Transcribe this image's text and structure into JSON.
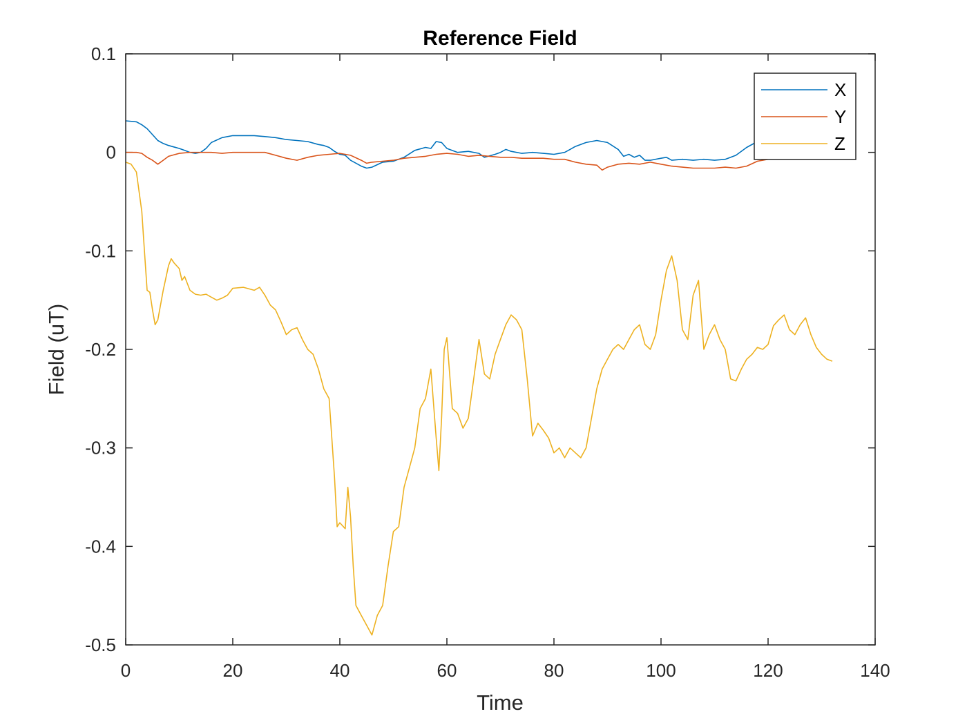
{
  "chart_data": {
    "type": "line",
    "title": "Reference Field",
    "xlabel": "Time",
    "ylabel": "Field (uT)",
    "xlim": [
      0,
      140
    ],
    "ylim": [
      -0.5,
      0.1
    ],
    "xticks": [
      0,
      20,
      40,
      60,
      80,
      100,
      120,
      140
    ],
    "yticks": [
      -0.5,
      -0.4,
      -0.3,
      -0.2,
      -0.1,
      0,
      0.1
    ],
    "xtick_labels": [
      "0",
      "20",
      "40",
      "60",
      "80",
      "100",
      "120",
      "140"
    ],
    "ytick_labels": [
      "-0.5",
      "-0.4",
      "-0.3",
      "-0.2",
      "-0.1",
      "0",
      "0.1"
    ],
    "grid": false,
    "box": true,
    "legend": {
      "position": "top-right",
      "entries": [
        "X",
        "Y",
        "Z"
      ]
    },
    "series": [
      {
        "name": "X",
        "color": "#0072BD",
        "points": [
          [
            0,
            0.032
          ],
          [
            2,
            0.031
          ],
          [
            3,
            0.028
          ],
          [
            4,
            0.024
          ],
          [
            5,
            0.018
          ],
          [
            6,
            0.012
          ],
          [
            7,
            0.009
          ],
          [
            8,
            0.007
          ],
          [
            10,
            0.004
          ],
          [
            11,
            0.002
          ],
          [
            12,
            0.0
          ],
          [
            13,
            -0.001
          ],
          [
            14,
            0.0
          ],
          [
            15,
            0.004
          ],
          [
            16,
            0.01
          ],
          [
            18,
            0.015
          ],
          [
            20,
            0.017
          ],
          [
            22,
            0.017
          ],
          [
            24,
            0.017
          ],
          [
            26,
            0.016
          ],
          [
            28,
            0.015
          ],
          [
            30,
            0.013
          ],
          [
            32,
            0.012
          ],
          [
            34,
            0.011
          ],
          [
            36,
            0.008
          ],
          [
            37,
            0.007
          ],
          [
            38,
            0.005
          ],
          [
            39,
            0.001
          ],
          [
            40,
            -0.002
          ],
          [
            41,
            -0.003
          ],
          [
            42,
            -0.008
          ],
          [
            44,
            -0.014
          ],
          [
            45,
            -0.016
          ],
          [
            46,
            -0.015
          ],
          [
            48,
            -0.01
          ],
          [
            50,
            -0.009
          ],
          [
            52,
            -0.005
          ],
          [
            54,
            0.002
          ],
          [
            56,
            0.005
          ],
          [
            57,
            0.004
          ],
          [
            58,
            0.011
          ],
          [
            59,
            0.01
          ],
          [
            60,
            0.004
          ],
          [
            62,
            0.0
          ],
          [
            64,
            0.001
          ],
          [
            66,
            -0.001
          ],
          [
            67,
            -0.005
          ],
          [
            69,
            -0.002
          ],
          [
            70,
            0.0
          ],
          [
            71,
            0.003
          ],
          [
            72,
            0.001
          ],
          [
            74,
            -0.001
          ],
          [
            76,
            0.0
          ],
          [
            78,
            -0.001
          ],
          [
            80,
            -0.002
          ],
          [
            82,
            0.0
          ],
          [
            83,
            0.003
          ],
          [
            84,
            0.006
          ],
          [
            86,
            0.01
          ],
          [
            88,
            0.012
          ],
          [
            90,
            0.01
          ],
          [
            92,
            0.003
          ],
          [
            93,
            -0.004
          ],
          [
            94,
            -0.002
          ],
          [
            95,
            -0.005
          ],
          [
            96,
            -0.003
          ],
          [
            97,
            -0.008
          ],
          [
            98,
            -0.008
          ],
          [
            100,
            -0.006
          ],
          [
            101,
            -0.005
          ],
          [
            102,
            -0.008
          ],
          [
            104,
            -0.007
          ],
          [
            106,
            -0.008
          ],
          [
            108,
            -0.007
          ],
          [
            110,
            -0.008
          ],
          [
            112,
            -0.007
          ],
          [
            114,
            -0.003
          ],
          [
            116,
            0.005
          ],
          [
            118,
            0.011
          ],
          [
            120,
            0.01
          ],
          [
            121.5,
            0.01
          ]
        ]
      },
      {
        "name": "Y",
        "color": "#D95319",
        "points": [
          [
            0,
            0.0
          ],
          [
            2,
            0.0
          ],
          [
            3,
            -0.001
          ],
          [
            4,
            -0.005
          ],
          [
            5,
            -0.008
          ],
          [
            6,
            -0.012
          ],
          [
            7,
            -0.008
          ],
          [
            8,
            -0.004
          ],
          [
            10,
            -0.001
          ],
          [
            12,
            0.0
          ],
          [
            14,
            0.0
          ],
          [
            16,
            0.0
          ],
          [
            18,
            -0.001
          ],
          [
            20,
            0.0
          ],
          [
            22,
            0.0
          ],
          [
            24,
            0.0
          ],
          [
            26,
            0.0
          ],
          [
            28,
            -0.003
          ],
          [
            30,
            -0.006
          ],
          [
            32,
            -0.008
          ],
          [
            34,
            -0.005
          ],
          [
            36,
            -0.003
          ],
          [
            38,
            -0.002
          ],
          [
            40,
            -0.001
          ],
          [
            42,
            -0.003
          ],
          [
            44,
            -0.008
          ],
          [
            45,
            -0.011
          ],
          [
            46,
            -0.01
          ],
          [
            48,
            -0.009
          ],
          [
            50,
            -0.008
          ],
          [
            52,
            -0.006
          ],
          [
            54,
            -0.005
          ],
          [
            56,
            -0.004
          ],
          [
            58,
            -0.002
          ],
          [
            60,
            -0.001
          ],
          [
            62,
            -0.002
          ],
          [
            64,
            -0.004
          ],
          [
            66,
            -0.003
          ],
          [
            68,
            -0.004
          ],
          [
            70,
            -0.005
          ],
          [
            72,
            -0.005
          ],
          [
            74,
            -0.006
          ],
          [
            76,
            -0.006
          ],
          [
            78,
            -0.006
          ],
          [
            80,
            -0.007
          ],
          [
            82,
            -0.007
          ],
          [
            84,
            -0.01
          ],
          [
            86,
            -0.012
          ],
          [
            88,
            -0.013
          ],
          [
            89,
            -0.018
          ],
          [
            90,
            -0.015
          ],
          [
            92,
            -0.012
          ],
          [
            94,
            -0.011
          ],
          [
            96,
            -0.012
          ],
          [
            98,
            -0.01
          ],
          [
            100,
            -0.012
          ],
          [
            102,
            -0.014
          ],
          [
            104,
            -0.015
          ],
          [
            106,
            -0.016
          ],
          [
            108,
            -0.016
          ],
          [
            110,
            -0.016
          ],
          [
            112,
            -0.015
          ],
          [
            114,
            -0.016
          ],
          [
            116,
            -0.014
          ],
          [
            118,
            -0.009
          ],
          [
            120,
            -0.007
          ],
          [
            121.5,
            -0.006
          ]
        ]
      },
      {
        "name": "Z",
        "color": "#EDB120",
        "points": [
          [
            0,
            -0.01
          ],
          [
            1,
            -0.012
          ],
          [
            2,
            -0.02
          ],
          [
            3,
            -0.06
          ],
          [
            3.5,
            -0.1
          ],
          [
            4,
            -0.14
          ],
          [
            4.5,
            -0.142
          ],
          [
            5,
            -0.16
          ],
          [
            5.5,
            -0.175
          ],
          [
            6,
            -0.17
          ],
          [
            7,
            -0.14
          ],
          [
            8,
            -0.115
          ],
          [
            8.5,
            -0.108
          ],
          [
            9,
            -0.112
          ],
          [
            10,
            -0.118
          ],
          [
            10.5,
            -0.13
          ],
          [
            11,
            -0.126
          ],
          [
            12,
            -0.14
          ],
          [
            13,
            -0.144
          ],
          [
            14,
            -0.145
          ],
          [
            15,
            -0.144
          ],
          [
            16,
            -0.147
          ],
          [
            17,
            -0.15
          ],
          [
            18,
            -0.148
          ],
          [
            19,
            -0.145
          ],
          [
            20,
            -0.138
          ],
          [
            22,
            -0.137
          ],
          [
            24,
            -0.14
          ],
          [
            25,
            -0.137
          ],
          [
            26,
            -0.145
          ],
          [
            27,
            -0.155
          ],
          [
            28,
            -0.16
          ],
          [
            29,
            -0.172
          ],
          [
            30,
            -0.185
          ],
          [
            31,
            -0.18
          ],
          [
            32,
            -0.178
          ],
          [
            33,
            -0.19
          ],
          [
            34,
            -0.2
          ],
          [
            35,
            -0.205
          ],
          [
            36,
            -0.22
          ],
          [
            37,
            -0.24
          ],
          [
            38,
            -0.25
          ],
          [
            38.5,
            -0.29
          ],
          [
            39,
            -0.33
          ],
          [
            39.5,
            -0.38
          ],
          [
            40,
            -0.376
          ],
          [
            41,
            -0.382
          ],
          [
            41.5,
            -0.34
          ],
          [
            42,
            -0.37
          ],
          [
            42.5,
            -0.42
          ],
          [
            43,
            -0.46
          ],
          [
            44,
            -0.47
          ],
          [
            45,
            -0.48
          ],
          [
            46,
            -0.49
          ],
          [
            47,
            -0.47
          ],
          [
            48,
            -0.46
          ],
          [
            49,
            -0.42
          ],
          [
            50,
            -0.385
          ],
          [
            51,
            -0.38
          ],
          [
            52,
            -0.34
          ],
          [
            53,
            -0.32
          ],
          [
            54,
            -0.3
          ],
          [
            55,
            -0.26
          ],
          [
            56,
            -0.25
          ],
          [
            57,
            -0.22
          ],
          [
            58,
            -0.29
          ],
          [
            58.5,
            -0.323
          ],
          [
            59,
            -0.27
          ],
          [
            59.5,
            -0.2
          ],
          [
            60,
            -0.188
          ],
          [
            61,
            -0.26
          ],
          [
            62,
            -0.265
          ],
          [
            63,
            -0.28
          ],
          [
            64,
            -0.27
          ],
          [
            65,
            -0.23
          ],
          [
            66,
            -0.19
          ],
          [
            67,
            -0.225
          ],
          [
            68,
            -0.23
          ],
          [
            69,
            -0.205
          ],
          [
            70,
            -0.19
          ],
          [
            71,
            -0.175
          ],
          [
            72,
            -0.165
          ],
          [
            73,
            -0.17
          ],
          [
            74,
            -0.18
          ],
          [
            75,
            -0.23
          ],
          [
            76,
            -0.288
          ],
          [
            77,
            -0.275
          ],
          [
            78,
            -0.282
          ],
          [
            79,
            -0.29
          ],
          [
            80,
            -0.305
          ],
          [
            81,
            -0.3
          ],
          [
            82,
            -0.31
          ],
          [
            83,
            -0.3
          ],
          [
            84,
            -0.305
          ],
          [
            85,
            -0.31
          ],
          [
            86,
            -0.3
          ],
          [
            87,
            -0.27
          ],
          [
            88,
            -0.24
          ],
          [
            89,
            -0.22
          ],
          [
            90,
            -0.21
          ],
          [
            91,
            -0.2
          ],
          [
            92,
            -0.195
          ],
          [
            93,
            -0.2
          ],
          [
            94,
            -0.19
          ],
          [
            95,
            -0.18
          ],
          [
            96,
            -0.175
          ],
          [
            97,
            -0.195
          ],
          [
            98,
            -0.2
          ],
          [
            99,
            -0.185
          ],
          [
            100,
            -0.15
          ],
          [
            101,
            -0.12
          ],
          [
            102,
            -0.105
          ],
          [
            103,
            -0.13
          ],
          [
            104,
            -0.18
          ],
          [
            105,
            -0.19
          ],
          [
            106,
            -0.145
          ],
          [
            107,
            -0.13
          ],
          [
            108,
            -0.2
          ],
          [
            109,
            -0.185
          ],
          [
            110,
            -0.175
          ],
          [
            111,
            -0.19
          ],
          [
            112,
            -0.2
          ],
          [
            113,
            -0.23
          ],
          [
            114,
            -0.232
          ],
          [
            115,
            -0.22
          ],
          [
            116,
            -0.21
          ],
          [
            117,
            -0.205
          ],
          [
            118,
            -0.198
          ],
          [
            119,
            -0.2
          ],
          [
            120,
            -0.195
          ],
          [
            121,
            -0.176
          ],
          [
            122,
            -0.17
          ],
          [
            123,
            -0.165
          ],
          [
            124,
            -0.18
          ],
          [
            125,
            -0.185
          ],
          [
            126,
            -0.175
          ],
          [
            127,
            -0.168
          ],
          [
            128,
            -0.185
          ],
          [
            129,
            -0.198
          ],
          [
            130,
            -0.205
          ],
          [
            131,
            -0.21
          ],
          [
            132,
            -0.212
          ]
        ]
      }
    ]
  }
}
